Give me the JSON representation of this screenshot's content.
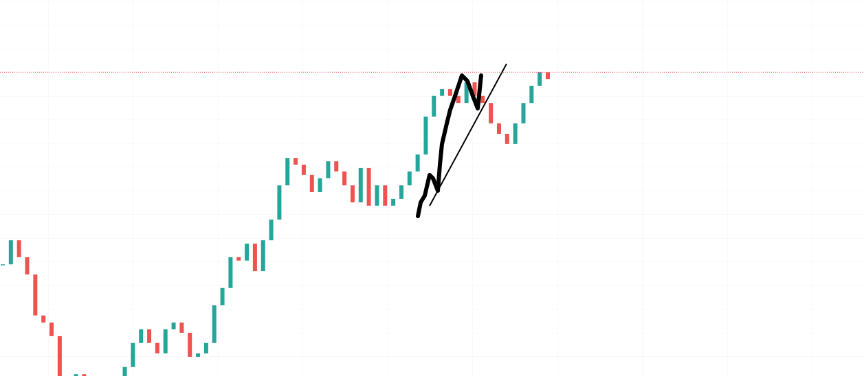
{
  "chart_data": {
    "type": "candlestick",
    "values": [
      29.7,
      36.1,
      31.6,
      27.0,
      16.1,
      14.2,
      10.6,
      -3,
      -1,
      0.5,
      -4,
      -5,
      -4,
      -2,
      0,
      2.4,
      8.8,
      12.4,
      8.8,
      6.0,
      12.4,
      14.2,
      11.5,
      5.1,
      6.0,
      8.8,
      18.8,
      23.4,
      31.6,
      30.7,
      35.2,
      27.9,
      36.1,
      41.6,
      50.7,
      58.0,
      56.2,
      53.5,
      48.9,
      52.6,
      57.1,
      54.4,
      50.7,
      46.2,
      55.3,
      45.3,
      50.7,
      45.3,
      47.1,
      50.7,
      54.4,
      58.9,
      69.0,
      74.5,
      76.3,
      74.5,
      72.6,
      78.1,
      74.5,
      72.6,
      67.2,
      64.4,
      61.7,
      67.2,
      72.6,
      77.2,
      80.8,
      79.0
    ],
    "up_color": "#26a69a",
    "down_color": "#ef5350",
    "price_line": 80.8,
    "price_line_color": "#ef5350",
    "ylim": [
      0,
      100
    ],
    "grid": true
  }
}
